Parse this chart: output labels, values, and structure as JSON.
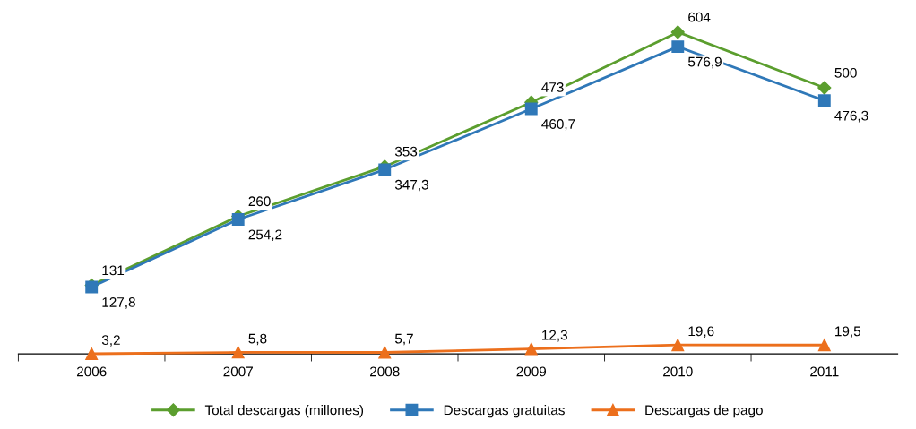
{
  "chart_data": {
    "type": "line",
    "categories": [
      "2006",
      "2007",
      "2008",
      "2009",
      "2010",
      "2011"
    ],
    "series": [
      {
        "name": "Total descargas (millones)",
        "color": "#5b9e2e",
        "marker": "diamond",
        "values": [
          131,
          260,
          353,
          473,
          604,
          500
        ],
        "value_labels": [
          "131",
          "260",
          "353",
          "473",
          "604",
          "500"
        ]
      },
      {
        "name": "Descargas gratuitas",
        "color": "#2f78b8",
        "marker": "square",
        "values": [
          127.8,
          254.2,
          347.3,
          460.7,
          576.9,
          476.3
        ],
        "value_labels": [
          "127,8",
          "254,2",
          "347,3",
          "460,7",
          "576,9",
          "476,3"
        ]
      },
      {
        "name": "Descargas de pago",
        "color": "#ec6f1c",
        "marker": "triangle",
        "values": [
          3.2,
          5.8,
          5.7,
          12.3,
          19.6,
          19.5
        ],
        "value_labels": [
          "3,2",
          "5,8",
          "5,7",
          "12,3",
          "19,6",
          "19,5"
        ]
      }
    ],
    "legend": "bottom",
    "grid": false,
    "tick_labels": "x"
  }
}
